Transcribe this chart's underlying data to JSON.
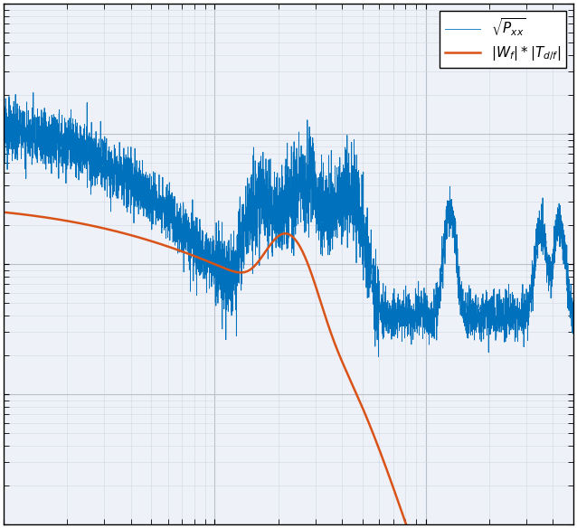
{
  "title": "",
  "xlabel": "",
  "ylabel": "",
  "blue_color": "#0072BD",
  "orange_color": "#D95319",
  "legend_label_blue": "$\\sqrt{P_{xx}}$",
  "legend_label_orange": "$|W_f| * |T_{d/f}|$",
  "xmin": 1,
  "xmax": 500,
  "ymin": 1e-10,
  "ymax": 1e-06,
  "background_color": "#ffffff",
  "grid_major_color": "#b8c0cc",
  "grid_minor_color": "#d0d8e4",
  "fig_width": 6.38,
  "fig_height": 5.84,
  "dpi": 100
}
